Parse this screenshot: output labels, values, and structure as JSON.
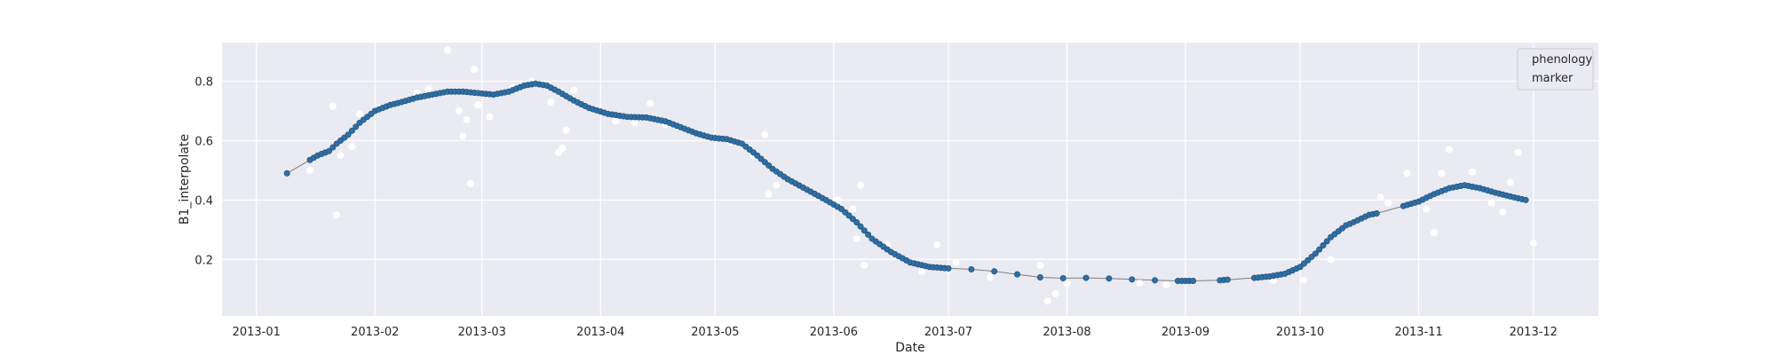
{
  "chart_data": {
    "type": "scatter",
    "xlabel": "Date",
    "ylabel": "B1_interpolate",
    "xlim": [
      "2012-12-23",
      "2013-12-18"
    ],
    "ylim": [
      0.01,
      0.93
    ],
    "x_ticks": [
      "2013-01-01",
      "2013-02-01",
      "2013-03-01",
      "2013-04-01",
      "2013-05-01",
      "2013-06-01",
      "2013-07-01",
      "2013-08-01",
      "2013-09-01",
      "2013-10-01",
      "2013-11-01",
      "2013-12-01"
    ],
    "x_tick_labels": [
      "2013-01",
      "2013-02",
      "2013-03",
      "2013-04",
      "2013-05",
      "2013-06",
      "2013-07",
      "2013-08",
      "2013-09",
      "2013-10",
      "2013-11",
      "2013-12"
    ],
    "y_ticks": [
      0.2,
      0.4,
      0.6,
      0.8
    ],
    "y_tick_labels": [
      "0.2",
      "0.4",
      "0.6",
      "0.8"
    ],
    "grid": true,
    "background": "#eaeaf2",
    "legend": {
      "position": "top-right",
      "entries": [
        "phenology",
        "marker"
      ]
    },
    "series": [
      {
        "role": "interpolated curve (line with markers)",
        "color": "#2f6fa3",
        "line_color": "#7f7f7f",
        "points": [
          [
            "2013-01-09",
            0.49
          ],
          [
            "2013-01-15",
            0.535
          ],
          [
            "2013-01-17",
            0.55
          ],
          [
            "2013-01-20",
            0.565
          ],
          [
            "2013-01-22",
            0.59
          ],
          [
            "2013-01-25",
            0.62
          ],
          [
            "2013-01-28",
            0.66
          ],
          [
            "2013-02-01",
            0.7
          ],
          [
            "2013-02-05",
            0.72
          ],
          [
            "2013-02-08",
            0.73
          ],
          [
            "2013-02-12",
            0.745
          ],
          [
            "2013-02-16",
            0.755
          ],
          [
            "2013-02-20",
            0.765
          ],
          [
            "2013-02-24",
            0.765
          ],
          [
            "2013-02-28",
            0.76
          ],
          [
            "2013-03-04",
            0.755
          ],
          [
            "2013-03-08",
            0.765
          ],
          [
            "2013-03-12",
            0.785
          ],
          [
            "2013-03-15",
            0.792
          ],
          [
            "2013-03-18",
            0.785
          ],
          [
            "2013-03-21",
            0.765
          ],
          [
            "2013-03-25",
            0.735
          ],
          [
            "2013-03-29",
            0.71
          ],
          [
            "2013-04-03",
            0.69
          ],
          [
            "2013-04-08",
            0.68
          ],
          [
            "2013-04-13",
            0.678
          ],
          [
            "2013-04-18",
            0.665
          ],
          [
            "2013-04-22",
            0.645
          ],
          [
            "2013-04-26",
            0.625
          ],
          [
            "2013-04-30",
            0.61
          ],
          [
            "2013-05-04",
            0.605
          ],
          [
            "2013-05-08",
            0.59
          ],
          [
            "2013-05-12",
            0.55
          ],
          [
            "2013-05-16",
            0.505
          ],
          [
            "2013-05-20",
            0.47
          ],
          [
            "2013-05-25",
            0.435
          ],
          [
            "2013-05-30",
            0.4
          ],
          [
            "2013-06-03",
            0.37
          ],
          [
            "2013-06-07",
            0.325
          ],
          [
            "2013-06-11",
            0.27
          ],
          [
            "2013-06-16",
            0.225
          ],
          [
            "2013-06-21",
            0.19
          ],
          [
            "2013-06-26",
            0.175
          ],
          [
            "2013-07-01",
            0.17
          ],
          [
            "2013-07-07",
            0.167
          ],
          [
            "2013-07-13",
            0.16
          ],
          [
            "2013-07-19",
            0.15
          ],
          [
            "2013-07-25",
            0.14
          ],
          [
            "2013-07-31",
            0.137
          ],
          [
            "2013-08-06",
            0.138
          ],
          [
            "2013-08-12",
            0.136
          ],
          [
            "2013-08-18",
            0.133
          ],
          [
            "2013-08-24",
            0.13
          ],
          [
            "2013-08-30",
            0.128
          ],
          [
            "2013-09-03",
            0.128
          ],
          [
            "2013-09-10",
            0.13
          ],
          [
            "2013-09-12",
            0.132
          ],
          [
            "2013-09-19",
            0.138
          ],
          [
            "2013-09-23",
            0.143
          ],
          [
            "2013-09-27",
            0.152
          ],
          [
            "2013-10-01",
            0.175
          ],
          [
            "2013-10-05",
            0.22
          ],
          [
            "2013-10-09",
            0.275
          ],
          [
            "2013-10-13",
            0.315
          ],
          [
            "2013-10-14",
            0.32
          ],
          [
            "2013-10-19",
            0.35
          ],
          [
            "2013-10-21",
            0.355
          ],
          [
            "2013-10-28",
            0.38
          ],
          [
            "2013-11-01",
            0.395
          ],
          [
            "2013-11-05",
            0.42
          ],
          [
            "2013-11-09",
            0.44
          ],
          [
            "2013-11-13",
            0.45
          ],
          [
            "2013-11-17",
            0.44
          ],
          [
            "2013-11-21",
            0.425
          ],
          [
            "2013-11-25",
            0.412
          ],
          [
            "2013-11-29",
            0.4
          ]
        ]
      },
      {
        "role": "raw observations (white dots)",
        "color": "#ffffff",
        "points": [
          [
            "2013-01-15",
            0.5
          ],
          [
            "2013-01-21",
            0.715
          ],
          [
            "2013-01-22",
            0.35
          ],
          [
            "2013-01-23",
            0.55
          ],
          [
            "2013-01-26",
            0.58
          ],
          [
            "2013-01-28",
            0.69
          ],
          [
            "2013-02-02",
            0.71
          ],
          [
            "2013-02-12",
            0.76
          ],
          [
            "2013-02-15",
            0.775
          ],
          [
            "2013-02-20",
            0.905
          ],
          [
            "2013-02-23",
            0.7
          ],
          [
            "2013-02-24",
            0.615
          ],
          [
            "2013-02-25",
            0.67
          ],
          [
            "2013-02-26",
            0.455
          ],
          [
            "2013-02-27",
            0.84
          ],
          [
            "2013-02-28",
            0.72
          ],
          [
            "2013-03-03",
            0.68
          ],
          [
            "2013-03-09",
            0.78
          ],
          [
            "2013-03-14",
            0.8
          ],
          [
            "2013-03-19",
            0.73
          ],
          [
            "2013-03-21",
            0.56
          ],
          [
            "2013-03-22",
            0.575
          ],
          [
            "2013-03-23",
            0.635
          ],
          [
            "2013-03-25",
            0.77
          ],
          [
            "2013-04-05",
            0.665
          ],
          [
            "2013-04-10",
            0.66
          ],
          [
            "2013-04-14",
            0.725
          ],
          [
            "2013-04-18",
            0.655
          ],
          [
            "2013-05-05",
            0.595
          ],
          [
            "2013-05-11",
            0.55
          ],
          [
            "2013-05-14",
            0.62
          ],
          [
            "2013-05-15",
            0.42
          ],
          [
            "2013-05-17",
            0.45
          ],
          [
            "2013-06-02",
            0.4
          ],
          [
            "2013-06-06",
            0.37
          ],
          [
            "2013-06-07",
            0.27
          ],
          [
            "2013-06-08",
            0.45
          ],
          [
            "2013-06-09",
            0.18
          ],
          [
            "2013-06-15",
            0.25
          ],
          [
            "2013-06-24",
            0.16
          ],
          [
            "2013-06-28",
            0.25
          ],
          [
            "2013-07-03",
            0.19
          ],
          [
            "2013-07-12",
            0.14
          ],
          [
            "2013-07-25",
            0.18
          ],
          [
            "2013-07-27",
            0.06
          ],
          [
            "2013-07-29",
            0.085
          ],
          [
            "2013-08-01",
            0.12
          ],
          [
            "2013-08-20",
            0.12
          ],
          [
            "2013-08-27",
            0.115
          ],
          [
            "2013-09-24",
            0.13
          ],
          [
            "2013-10-02",
            0.13
          ],
          [
            "2013-10-09",
            0.2
          ],
          [
            "2013-10-15",
            0.33
          ],
          [
            "2013-10-22",
            0.41
          ],
          [
            "2013-10-24",
            0.39
          ],
          [
            "2013-10-29",
            0.49
          ],
          [
            "2013-11-03",
            0.37
          ],
          [
            "2013-11-05",
            0.29
          ],
          [
            "2013-11-07",
            0.49
          ],
          [
            "2013-11-09",
            0.57
          ],
          [
            "2013-11-15",
            0.495
          ],
          [
            "2013-11-20",
            0.39
          ],
          [
            "2013-11-23",
            0.36
          ],
          [
            "2013-11-25",
            0.46
          ],
          [
            "2013-11-27",
            0.56
          ],
          [
            "2013-12-01",
            0.255
          ]
        ]
      }
    ]
  }
}
